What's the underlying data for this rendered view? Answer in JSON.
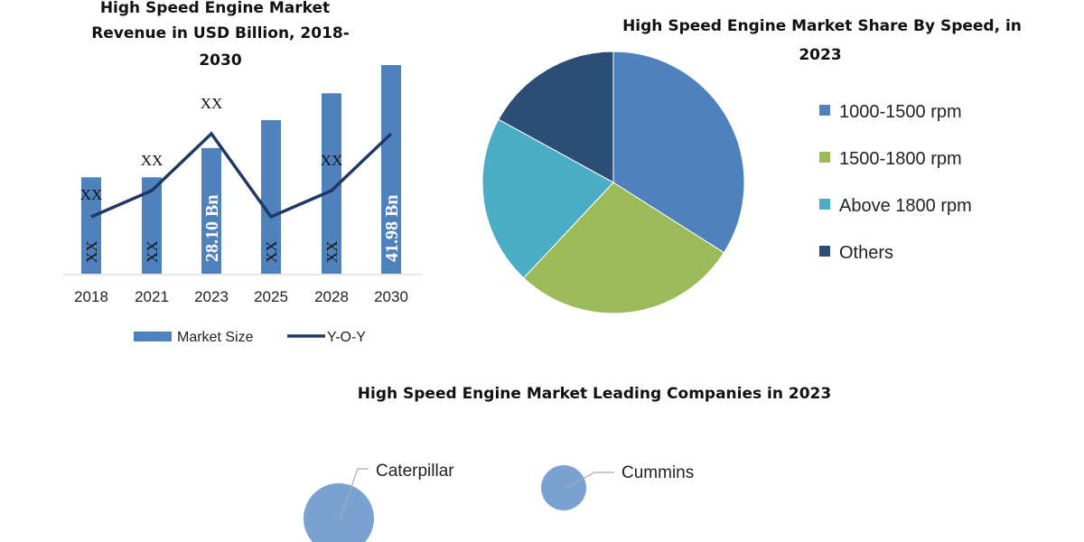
{
  "chart_data": [
    {
      "type": "bar",
      "title_lines": [
        "High Speed Engine Market",
        "Revenue in USD Billion, 2018-",
        "2030"
      ],
      "categories": [
        "2018",
        "2021",
        "2023",
        "2025",
        "2028",
        "2030"
      ],
      "series": [
        {
          "name": "Market Size",
          "kind": "bar",
          "color": "#4f81bd",
          "values": [
            19.4,
            19.4,
            28.1,
            30.9,
            36.3,
            41.98
          ],
          "data_labels": [
            "XX",
            "XX",
            "28.10 Bn",
            "XX",
            "XX",
            "41.98 Bn"
          ]
        },
        {
          "name": "Y-O-Y",
          "kind": "line",
          "color": "#1f3864",
          "values": [
            3,
            4,
            6,
            3,
            4,
            6
          ],
          "data_labels": [
            "XX",
            "XX",
            "XX",
            "",
            "XX",
            ""
          ]
        }
      ],
      "ylim": [
        0,
        42
      ],
      "grid": false,
      "legend": "bottom"
    },
    {
      "type": "pie",
      "title_lines": [
        "High Speed Engine Market Share By Speed, in",
        "2023"
      ],
      "categories": [
        "1000-1500 rpm",
        "1500-1800 rpm",
        "Above 1800 rpm",
        "Others"
      ],
      "values": [
        34,
        28,
        21,
        17
      ],
      "colors": [
        "#4f81bd",
        "#9bbb59",
        "#4bacc6",
        "#2c4d75"
      ],
      "legend": "right"
    },
    {
      "type": "scatter",
      "title": "High Speed Engine Market Leading Companies in 2023",
      "points": [
        {
          "label": "Caterpillar",
          "relative_size": 1.0
        },
        {
          "label": "Cummins",
          "relative_size": 0.65
        }
      ],
      "color": "#7aa2d0"
    }
  ]
}
